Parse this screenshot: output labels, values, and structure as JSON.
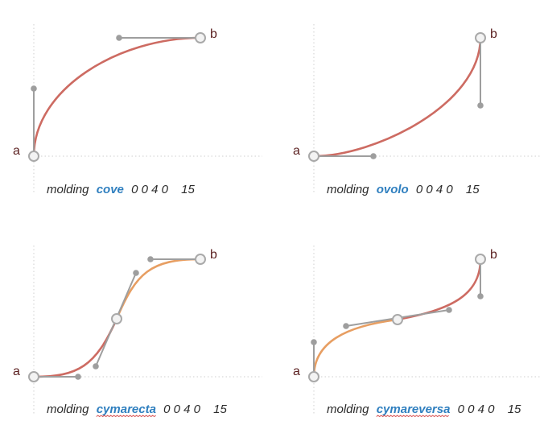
{
  "colors": {
    "curve": "#cd6b62",
    "curve_secondary": "#e79e62",
    "keyword": "#2f7fbf",
    "handle": "#9e9e9e",
    "anchor_stroke": "#a9a9a9",
    "endpoint_label": "#5a1f1f"
  },
  "panels": [
    {
      "start_label": "a",
      "end_label": "b",
      "caption": {
        "prefix": "molding",
        "keyword": "cove",
        "params": "0 0 4 0",
        "extra": "15"
      },
      "spellcheck_underline": false
    },
    {
      "start_label": "a",
      "end_label": "b",
      "caption": {
        "prefix": "molding",
        "keyword": "ovolo",
        "params": "0 0 4 0",
        "extra": "15"
      },
      "spellcheck_underline": false
    },
    {
      "start_label": "a",
      "end_label": "b",
      "caption": {
        "prefix": "molding",
        "keyword": "cymarecta",
        "params": "0 0 4 0",
        "extra": "15"
      },
      "spellcheck_underline": true
    },
    {
      "start_label": "a",
      "end_label": "b",
      "caption": {
        "prefix": "molding",
        "keyword": "cymareversa",
        "params": "0 0 4 0",
        "extra": "15"
      },
      "spellcheck_underline": true
    }
  ]
}
